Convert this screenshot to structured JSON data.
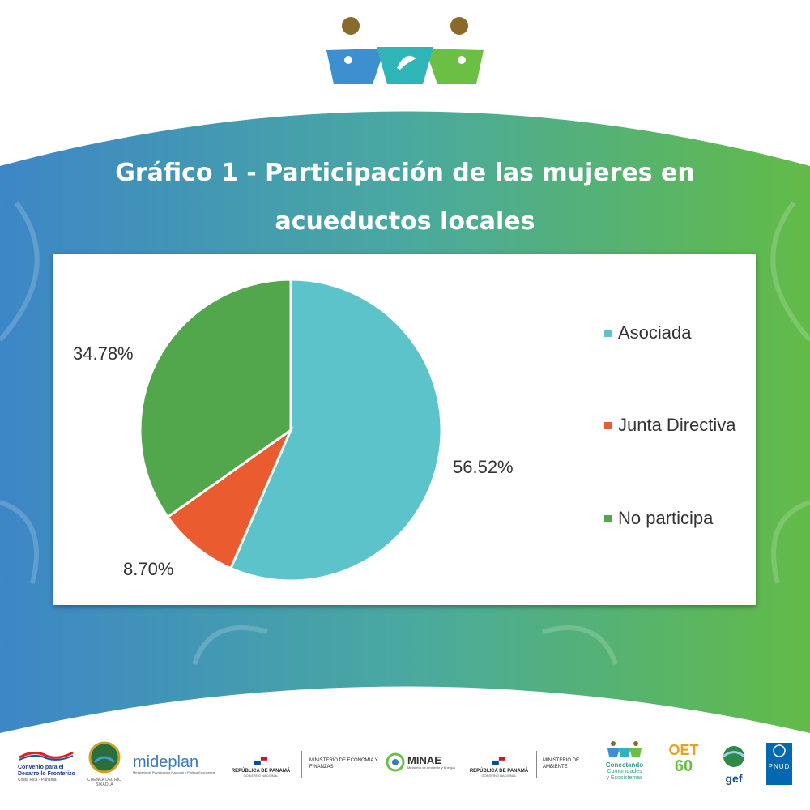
{
  "header": {
    "title_line1": "Gráfico 1 - Participación de las mujeres en",
    "title_line2": "acueductos locales"
  },
  "chart_data": {
    "type": "pie",
    "categories": [
      "Asociada",
      "Junta Directiva",
      "No participa"
    ],
    "values": [
      56.52,
      8.7,
      34.78
    ],
    "labels": [
      "56.52%",
      "8.70%",
      "34.78%"
    ],
    "colors": [
      "#5bc3c9",
      "#ea5b30",
      "#52a64b"
    ],
    "legend_position": "right"
  },
  "footer": {
    "logos": {
      "convenio": "Convenio para el Desarrollo Fronterizo",
      "convenio_sub": "Costa Rica - Panamá",
      "comision": "CUENCA DEL RÍO SIXAOLA",
      "mideplan": "mideplan",
      "mideplan_sub": "Ministerio de Planificación Nacional y Política Económica",
      "rep_panama_1": "REPÚBLICA DE PANAMÁ",
      "gob_nacional_1": "GOBIERNO NACIONAL",
      "mef": "MINISTERIO DE ECONOMÍA Y FINANZAS",
      "minae": "MINAE",
      "minae_sub": "Ministerio de Ambiente y Energía",
      "rep_panama_2": "REPÚBLICA DE PANAMÁ",
      "gob_nacional_2": "GOBIERNO NACIONAL",
      "miambiente": "MINISTERIO DE AMBIENTE",
      "conectando_1": "Conectando",
      "conectando_2": "Comunidades",
      "conectando_3": "y Ecosistemas",
      "oet": "OET",
      "oet_num": "60",
      "gef": "gef",
      "pnud": "PNUD"
    }
  }
}
